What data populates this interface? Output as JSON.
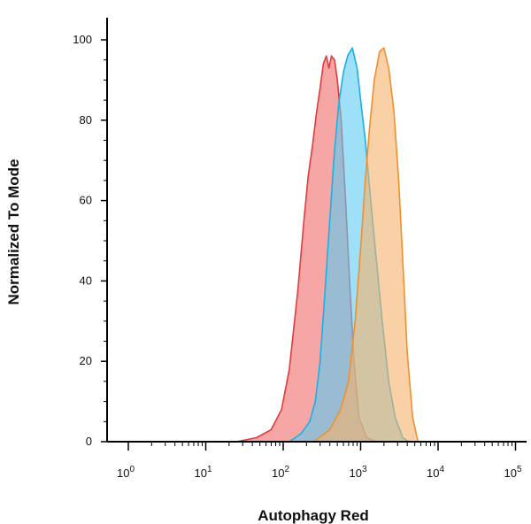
{
  "chart_data": {
    "type": "area",
    "xlabel": "Autophagy Red",
    "ylabel": "Normalized To Mode",
    "xscale": "log",
    "xlim": [
      0.6,
      150000
    ],
    "ylim": [
      0,
      105
    ],
    "grid": false,
    "y_ticks": [
      0,
      20,
      40,
      60,
      80,
      100
    ],
    "x_ticks": [
      {
        "value": 1,
        "base": "10",
        "exp": "0"
      },
      {
        "value": 10,
        "base": "10",
        "exp": "1"
      },
      {
        "value": 100,
        "base": "10",
        "exp": "2"
      },
      {
        "value": 1000,
        "base": "10",
        "exp": "3"
      },
      {
        "value": 10000,
        "base": "10",
        "exp": "4"
      },
      {
        "value": 100000,
        "base": "10",
        "exp": "5"
      }
    ],
    "series": [
      {
        "fill": "#f26b6b",
        "stroke": "#e03c3c",
        "points": [
          [
            25,
            0
          ],
          [
            45,
            1
          ],
          [
            70,
            3
          ],
          [
            95,
            8
          ],
          [
            120,
            18
          ],
          [
            155,
            38
          ],
          [
            185,
            55
          ],
          [
            210,
            66
          ],
          [
            240,
            74
          ],
          [
            270,
            82
          ],
          [
            300,
            88
          ],
          [
            330,
            94
          ],
          [
            360,
            96
          ],
          [
            390,
            93
          ],
          [
            420,
            96
          ],
          [
            460,
            95
          ],
          [
            500,
            90
          ],
          [
            560,
            80
          ],
          [
            640,
            60
          ],
          [
            720,
            40
          ],
          [
            820,
            20
          ],
          [
            950,
            6
          ],
          [
            1200,
            1
          ],
          [
            1600,
            0
          ]
        ]
      },
      {
        "fill": "#5ccbf2",
        "stroke": "#1ab0e6",
        "points": [
          [
            120,
            0
          ],
          [
            170,
            2
          ],
          [
            220,
            5
          ],
          [
            260,
            10
          ],
          [
            300,
            20
          ],
          [
            340,
            35
          ],
          [
            390,
            52
          ],
          [
            450,
            70
          ],
          [
            520,
            84
          ],
          [
            600,
            92
          ],
          [
            680,
            96
          ],
          [
            780,
            98
          ],
          [
            900,
            93
          ],
          [
            1000,
            85
          ],
          [
            1150,
            75
          ],
          [
            1350,
            60
          ],
          [
            1600,
            45
          ],
          [
            1900,
            30
          ],
          [
            2300,
            15
          ],
          [
            2800,
            6
          ],
          [
            3500,
            1
          ],
          [
            4200,
            0
          ]
        ]
      },
      {
        "fill": "#f7b36b",
        "stroke": "#f08f2c",
        "points": [
          [
            250,
            0
          ],
          [
            400,
            3
          ],
          [
            550,
            8
          ],
          [
            700,
            15
          ],
          [
            850,
            30
          ],
          [
            1000,
            48
          ],
          [
            1150,
            65
          ],
          [
            1300,
            78
          ],
          [
            1500,
            90
          ],
          [
            1750,
            97
          ],
          [
            2000,
            98
          ],
          [
            2300,
            93
          ],
          [
            2700,
            82
          ],
          [
            3100,
            65
          ],
          [
            3500,
            45
          ],
          [
            4000,
            22
          ],
          [
            4700,
            6
          ],
          [
            5500,
            0
          ]
        ]
      }
    ]
  }
}
